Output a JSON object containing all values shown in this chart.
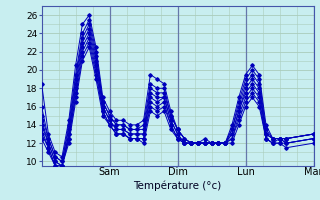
{
  "xlabel": "Température (°c)",
  "background_color": "#c8eef0",
  "grid_color": "#aaccbb",
  "line_color": "#0000bb",
  "ylim": [
    9.5,
    27.0
  ],
  "xlim": [
    0,
    96
  ],
  "yticks": [
    10,
    12,
    14,
    16,
    18,
    20,
    22,
    24,
    26
  ],
  "xticks": [
    24,
    48,
    72,
    96
  ],
  "xtick_labels": [
    "Sam",
    "Dim",
    "Lun",
    "Mar"
  ],
  "series": [
    [
      18.5,
      13.0,
      11.0,
      10.5,
      14.5,
      20.5,
      25.0,
      26.0,
      22.5,
      17.0,
      15.5,
      14.5,
      14.5,
      14.0,
      14.0,
      14.5,
      19.5,
      19.0,
      18.5,
      15.5,
      13.5,
      12.5,
      12.0,
      12.0,
      12.5,
      12.0,
      12.0,
      12.0,
      14.0,
      17.0,
      19.5,
      20.5,
      19.5,
      14.0,
      12.5,
      12.5,
      12.5,
      13.0
    ],
    [
      16.0,
      12.5,
      10.5,
      10.0,
      14.0,
      19.5,
      24.0,
      25.5,
      22.0,
      16.5,
      15.0,
      14.0,
      14.0,
      13.5,
      13.5,
      14.0,
      18.5,
      18.0,
      18.0,
      15.0,
      13.5,
      12.5,
      12.0,
      12.0,
      12.0,
      12.0,
      12.0,
      12.0,
      13.5,
      16.5,
      19.0,
      20.0,
      19.0,
      13.5,
      12.5,
      12.5,
      12.5,
      13.0
    ],
    [
      15.0,
      12.5,
      10.5,
      10.0,
      13.5,
      19.0,
      23.5,
      25.0,
      21.5,
      16.5,
      15.0,
      14.0,
      14.0,
      13.5,
      13.5,
      13.5,
      18.0,
      17.5,
      17.5,
      15.0,
      13.5,
      12.5,
      12.0,
      12.0,
      12.0,
      12.0,
      12.0,
      12.0,
      13.5,
      16.0,
      18.5,
      19.5,
      18.5,
      13.0,
      12.5,
      12.5,
      12.5,
      13.0
    ],
    [
      14.5,
      12.0,
      10.0,
      9.5,
      13.0,
      18.5,
      23.0,
      24.5,
      21.0,
      16.0,
      14.5,
      13.5,
      13.5,
      13.0,
      13.0,
      13.0,
      17.5,
      17.0,
      17.0,
      14.5,
      13.0,
      12.0,
      12.0,
      12.0,
      12.0,
      12.0,
      12.0,
      12.0,
      13.0,
      15.5,
      18.0,
      19.0,
      18.0,
      13.0,
      12.5,
      12.5,
      12.5,
      13.0
    ],
    [
      14.0,
      12.0,
      10.0,
      9.5,
      13.0,
      18.0,
      22.5,
      24.0,
      20.5,
      16.0,
      14.5,
      13.5,
      13.5,
      13.0,
      13.0,
      13.0,
      17.0,
      16.5,
      17.0,
      14.5,
      13.0,
      12.0,
      12.0,
      12.0,
      12.0,
      12.0,
      12.0,
      12.0,
      13.0,
      15.5,
      17.5,
      18.5,
      17.5,
      13.0,
      12.5,
      12.5,
      12.0,
      12.5
    ],
    [
      13.5,
      11.5,
      9.5,
      9.5,
      12.5,
      17.5,
      22.0,
      23.5,
      20.0,
      15.5,
      14.0,
      13.0,
      13.0,
      12.5,
      12.5,
      12.5,
      16.5,
      16.0,
      16.5,
      14.0,
      12.5,
      12.0,
      12.0,
      12.0,
      12.0,
      12.0,
      12.0,
      12.0,
      12.5,
      15.0,
      17.0,
      18.0,
      17.0,
      12.5,
      12.0,
      12.5,
      12.0,
      12.5
    ],
    [
      13.0,
      11.5,
      9.5,
      9.5,
      12.5,
      17.0,
      21.5,
      23.0,
      19.5,
      15.5,
      14.0,
      13.0,
      13.0,
      12.5,
      12.5,
      12.5,
      16.0,
      15.5,
      16.0,
      14.0,
      12.5,
      12.0,
      12.0,
      12.0,
      12.0,
      12.0,
      12.0,
      12.0,
      12.5,
      14.5,
      16.5,
      17.5,
      16.5,
      12.5,
      12.0,
      12.0,
      12.0,
      12.5
    ],
    [
      12.5,
      11.0,
      9.5,
      9.5,
      12.0,
      16.5,
      21.0,
      22.5,
      19.0,
      15.0,
      14.0,
      13.0,
      13.0,
      12.5,
      12.5,
      12.0,
      15.5,
      15.0,
      15.5,
      13.5,
      12.5,
      12.0,
      12.0,
      12.0,
      12.0,
      12.0,
      12.0,
      12.0,
      12.0,
      14.0,
      16.0,
      17.0,
      16.0,
      12.5,
      12.0,
      12.0,
      11.5,
      12.0
    ]
  ],
  "t_hours": [
    0,
    2.4,
    4.8,
    7.2,
    9.6,
    12,
    14.4,
    16.8,
    19.2,
    21.6,
    24,
    26.4,
    28.8,
    31.2,
    33.6,
    36,
    38.4,
    40.8,
    43.2,
    45.6,
    48,
    50.4,
    52.8,
    55.2,
    57.6,
    60,
    62.4,
    64.8,
    67.2,
    69.6,
    72,
    74.4,
    76.8,
    79.2,
    81.6,
    84,
    86.4,
    96
  ]
}
